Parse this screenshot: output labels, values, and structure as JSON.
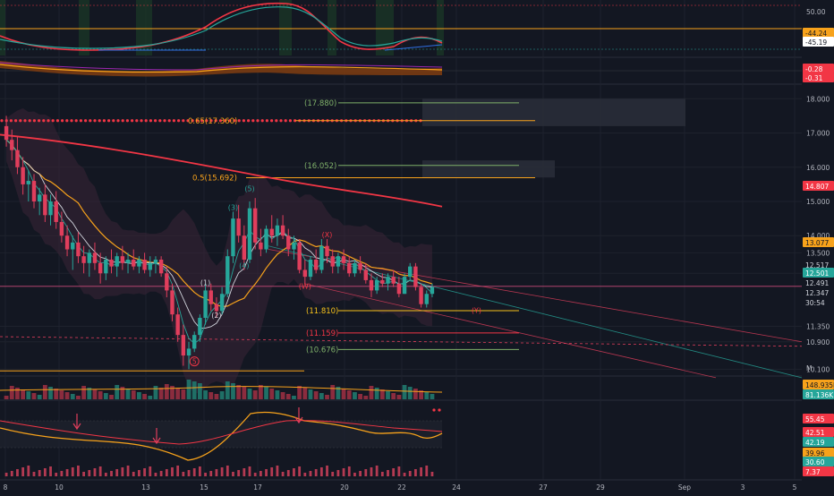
{
  "chart_data": {
    "type": "candlestick",
    "x_axis": {
      "ticks": [
        "8",
        "10",
        "13",
        "15",
        "17",
        "20",
        "22",
        "24",
        "27",
        "29",
        "Sep",
        "3",
        "5"
      ]
    },
    "price_axis": {
      "ticks": [
        "18.000",
        "17.000",
        "16.000",
        "15.000",
        "14.000",
        "13.500",
        "12.900",
        "11.350",
        "10.900",
        "10.100"
      ],
      "ylim": [
        9.9,
        18.4
      ]
    },
    "price_tags": [
      {
        "label": "14.807",
        "value": 14.807,
        "color": "#f23645"
      },
      {
        "label": "13.077",
        "value": 13.077,
        "color": "#f7a21b"
      },
      {
        "label": "12.517",
        "value": 12.517,
        "color": "#ffffff"
      },
      {
        "label": "12.501",
        "value": 12.501,
        "color": "#26a69a"
      },
      {
        "label": "12.491",
        "value": 12.491,
        "color": "#ffffff"
      },
      {
        "label": "12.347",
        "value": 12.347,
        "color": "#ffffff"
      },
      {
        "label": "30:54",
        "value": 12.0,
        "color": "#ffffff"
      }
    ],
    "fib_levels": [
      {
        "label": "(17.880)",
        "value": 17.88,
        "color": "#7fb069"
      },
      {
        "label": "0.65(17.360)",
        "value": 17.36,
        "color": "#f7a21b"
      },
      {
        "label": "(16.052)",
        "value": 16.052,
        "color": "#7fb069"
      },
      {
        "label": "0.5(15.692)",
        "value": 15.692,
        "color": "#f7a21b"
      },
      {
        "label": "(11.810)",
        "value": 11.81,
        "color": "#f7c21b"
      },
      {
        "label": "(11.159)",
        "value": 11.159,
        "color": "#f23645"
      },
      {
        "label": "(10.676)",
        "value": 10.676,
        "color": "#7fb069"
      }
    ],
    "wave_labels": [
      {
        "label": "(1)",
        "value": 12.55,
        "bar": 36,
        "color": "#d1d4dc"
      },
      {
        "label": "(2)",
        "value": 11.6,
        "bar": 38,
        "color": "#d1d4dc"
      },
      {
        "label": "(3)",
        "value": 14.75,
        "bar": 41,
        "color": "#26a69a"
      },
      {
        "label": "(4)",
        "value": 13.05,
        "bar": 43,
        "color": "#26a69a"
      },
      {
        "label": "(5)",
        "value": 15.3,
        "bar": 44,
        "color": "#26a69a"
      },
      {
        "label": "(X)",
        "value": 13.95,
        "bar": 58,
        "color": "#f23645"
      },
      {
        "label": "(W)",
        "value": 12.45,
        "bar": 54,
        "color": "#f23645"
      },
      {
        "label": "(Y)",
        "value": 11.75,
        "bar": 85,
        "color": "#f23645"
      },
      {
        "label": "5",
        "value": 10.25,
        "bar": 34,
        "color": "#f23645"
      }
    ],
    "candles": [
      {
        "o": 17.2,
        "h": 17.5,
        "l": 16.6,
        "c": 16.8
      },
      {
        "o": 16.8,
        "h": 17.1,
        "l": 16.2,
        "c": 16.5
      },
      {
        "o": 16.5,
        "h": 16.9,
        "l": 15.8,
        "c": 16.0
      },
      {
        "o": 16.0,
        "h": 16.3,
        "l": 15.2,
        "c": 15.5
      },
      {
        "o": 15.5,
        "h": 15.9,
        "l": 15.0,
        "c": 15.6
      },
      {
        "o": 15.6,
        "h": 15.8,
        "l": 14.8,
        "c": 15.0
      },
      {
        "o": 15.0,
        "h": 15.4,
        "l": 14.6,
        "c": 15.2
      },
      {
        "o": 15.2,
        "h": 15.5,
        "l": 14.4,
        "c": 14.6
      },
      {
        "o": 14.6,
        "h": 15.2,
        "l": 14.3,
        "c": 15.0
      },
      {
        "o": 15.0,
        "h": 15.3,
        "l": 14.2,
        "c": 14.4
      },
      {
        "o": 14.4,
        "h": 14.7,
        "l": 13.8,
        "c": 14.0
      },
      {
        "o": 14.0,
        "h": 14.3,
        "l": 13.4,
        "c": 13.6
      },
      {
        "o": 13.6,
        "h": 14.0,
        "l": 13.0,
        "c": 13.8
      },
      {
        "o": 13.8,
        "h": 14.1,
        "l": 13.2,
        "c": 13.4
      },
      {
        "o": 13.4,
        "h": 13.7,
        "l": 12.9,
        "c": 13.2
      },
      {
        "o": 13.2,
        "h": 13.6,
        "l": 12.8,
        "c": 13.5
      },
      {
        "o": 13.5,
        "h": 13.8,
        "l": 13.0,
        "c": 13.2
      },
      {
        "o": 13.2,
        "h": 13.5,
        "l": 12.6,
        "c": 12.9
      },
      {
        "o": 12.9,
        "h": 13.4,
        "l": 12.7,
        "c": 13.3
      },
      {
        "o": 13.3,
        "h": 13.6,
        "l": 12.9,
        "c": 13.1
      },
      {
        "o": 13.1,
        "h": 13.5,
        "l": 12.8,
        "c": 13.4
      },
      {
        "o": 13.4,
        "h": 13.7,
        "l": 13.0,
        "c": 13.2
      },
      {
        "o": 13.2,
        "h": 13.5,
        "l": 12.9,
        "c": 13.3
      },
      {
        "o": 13.3,
        "h": 13.6,
        "l": 13.0,
        "c": 13.1
      },
      {
        "o": 13.1,
        "h": 13.4,
        "l": 12.9,
        "c": 13.3
      },
      {
        "o": 13.3,
        "h": 13.5,
        "l": 12.9,
        "c": 13.0
      },
      {
        "o": 13.0,
        "h": 13.4,
        "l": 12.8,
        "c": 13.2
      },
      {
        "o": 13.2,
        "h": 13.4,
        "l": 12.9,
        "c": 13.3
      },
      {
        "o": 13.3,
        "h": 13.4,
        "l": 12.8,
        "c": 12.9
      },
      {
        "o": 12.9,
        "h": 13.1,
        "l": 12.2,
        "c": 12.4
      },
      {
        "o": 12.4,
        "h": 12.6,
        "l": 11.5,
        "c": 11.7
      },
      {
        "o": 11.7,
        "h": 11.9,
        "l": 10.9,
        "c": 11.1
      },
      {
        "o": 11.1,
        "h": 11.4,
        "l": 10.2,
        "c": 10.5
      },
      {
        "o": 10.5,
        "h": 10.9,
        "l": 10.1,
        "c": 10.7
      },
      {
        "o": 10.7,
        "h": 11.2,
        "l": 10.6,
        "c": 11.1
      },
      {
        "o": 11.1,
        "h": 11.7,
        "l": 10.9,
        "c": 11.6
      },
      {
        "o": 11.6,
        "h": 12.6,
        "l": 11.4,
        "c": 12.4
      },
      {
        "o": 12.4,
        "h": 12.6,
        "l": 11.8,
        "c": 12.0
      },
      {
        "o": 12.0,
        "h": 12.2,
        "l": 11.6,
        "c": 11.8
      },
      {
        "o": 11.8,
        "h": 12.5,
        "l": 11.7,
        "c": 12.3
      },
      {
        "o": 12.3,
        "h": 13.6,
        "l": 12.2,
        "c": 13.4
      },
      {
        "o": 13.4,
        "h": 14.7,
        "l": 13.2,
        "c": 14.5
      },
      {
        "o": 14.5,
        "h": 14.9,
        "l": 13.8,
        "c": 14.0
      },
      {
        "o": 14.0,
        "h": 14.3,
        "l": 13.0,
        "c": 13.3
      },
      {
        "o": 13.3,
        "h": 15.0,
        "l": 13.2,
        "c": 14.8
      },
      {
        "o": 14.8,
        "h": 15.1,
        "l": 13.6,
        "c": 13.8
      },
      {
        "o": 13.8,
        "h": 14.2,
        "l": 13.4,
        "c": 13.6
      },
      {
        "o": 13.6,
        "h": 14.3,
        "l": 13.5,
        "c": 14.2
      },
      {
        "o": 14.2,
        "h": 14.6,
        "l": 13.8,
        "c": 14.0
      },
      {
        "o": 14.0,
        "h": 14.5,
        "l": 13.7,
        "c": 14.3
      },
      {
        "o": 14.3,
        "h": 14.6,
        "l": 13.9,
        "c": 14.0
      },
      {
        "o": 14.0,
        "h": 14.2,
        "l": 13.4,
        "c": 13.6
      },
      {
        "o": 13.6,
        "h": 14.0,
        "l": 13.3,
        "c": 13.8
      },
      {
        "o": 13.8,
        "h": 13.9,
        "l": 12.9,
        "c": 13.0
      },
      {
        "o": 13.0,
        "h": 13.3,
        "l": 12.6,
        "c": 12.8
      },
      {
        "o": 12.8,
        "h": 13.4,
        "l": 12.7,
        "c": 13.3
      },
      {
        "o": 13.3,
        "h": 13.6,
        "l": 12.9,
        "c": 13.0
      },
      {
        "o": 13.0,
        "h": 13.9,
        "l": 12.9,
        "c": 13.7
      },
      {
        "o": 13.7,
        "h": 13.9,
        "l": 13.2,
        "c": 13.4
      },
      {
        "o": 13.4,
        "h": 13.6,
        "l": 12.9,
        "c": 13.1
      },
      {
        "o": 13.1,
        "h": 13.5,
        "l": 12.9,
        "c": 13.4
      },
      {
        "o": 13.4,
        "h": 13.6,
        "l": 13.0,
        "c": 13.2
      },
      {
        "o": 13.2,
        "h": 13.4,
        "l": 12.8,
        "c": 12.9
      },
      {
        "o": 12.9,
        "h": 13.3,
        "l": 12.8,
        "c": 13.2
      },
      {
        "o": 13.2,
        "h": 13.4,
        "l": 12.9,
        "c": 13.0
      },
      {
        "o": 13.0,
        "h": 13.2,
        "l": 12.6,
        "c": 12.7
      },
      {
        "o": 12.7,
        "h": 12.9,
        "l": 12.2,
        "c": 12.4
      },
      {
        "o": 12.4,
        "h": 12.8,
        "l": 12.3,
        "c": 12.7
      },
      {
        "o": 12.7,
        "h": 12.9,
        "l": 12.5,
        "c": 12.6
      },
      {
        "o": 12.6,
        "h": 12.9,
        "l": 12.4,
        "c": 12.8
      },
      {
        "o": 12.8,
        "h": 13.0,
        "l": 12.5,
        "c": 12.6
      },
      {
        "o": 12.6,
        "h": 12.8,
        "l": 12.2,
        "c": 12.3
      },
      {
        "o": 12.3,
        "h": 12.9,
        "l": 12.3,
        "c": 12.8
      },
      {
        "o": 12.8,
        "h": 13.2,
        "l": 12.7,
        "c": 13.1
      },
      {
        "o": 13.1,
        "h": 13.2,
        "l": 12.4,
        "c": 12.5
      },
      {
        "o": 12.5,
        "h": 12.6,
        "l": 11.9,
        "c": 12.0
      },
      {
        "o": 12.0,
        "h": 12.4,
        "l": 11.9,
        "c": 12.3
      },
      {
        "o": 12.3,
        "h": 12.6,
        "l": 12.2,
        "c": 12.5
      }
    ],
    "top_indicator": {
      "ticks": [
        "50.00",
        "-44.24",
        "-45.19"
      ],
      "levels": [
        {
          "label": "-44.24",
          "color": "#f7a21b"
        },
        {
          "label": "-45.19",
          "color": "#ffffff"
        }
      ]
    },
    "ao_indicator": {
      "levels": [
        {
          "label": "-0.28",
          "color": "#f23645"
        },
        {
          "label": "-0.31",
          "color": "#f23645"
        }
      ]
    },
    "volume": {
      "tags": [
        {
          "label": "148.935K",
          "color": "#f7a21b"
        },
        {
          "label": "81.136K",
          "color": "#26a69a"
        }
      ],
      "unit_label": "M"
    },
    "bottom_indicator": {
      "tags": [
        {
          "label": "55.45",
          "color": "#f23645"
        },
        {
          "label": "42.51",
          "color": "#f23645"
        },
        {
          "label": "42.19",
          "color": "#26a69a"
        },
        {
          "label": "39.96",
          "color": "#f7a21b"
        },
        {
          "label": "30.60",
          "color": "#26a69a"
        },
        {
          "label": "7.37",
          "color": "#f23645"
        }
      ]
    },
    "colors": {
      "up": "#26a69a",
      "down": "#e03e5c",
      "background": "#131722",
      "ema_red": "#f23645",
      "ema_orange": "#f7a21b",
      "grid": "#1e222d"
    }
  }
}
